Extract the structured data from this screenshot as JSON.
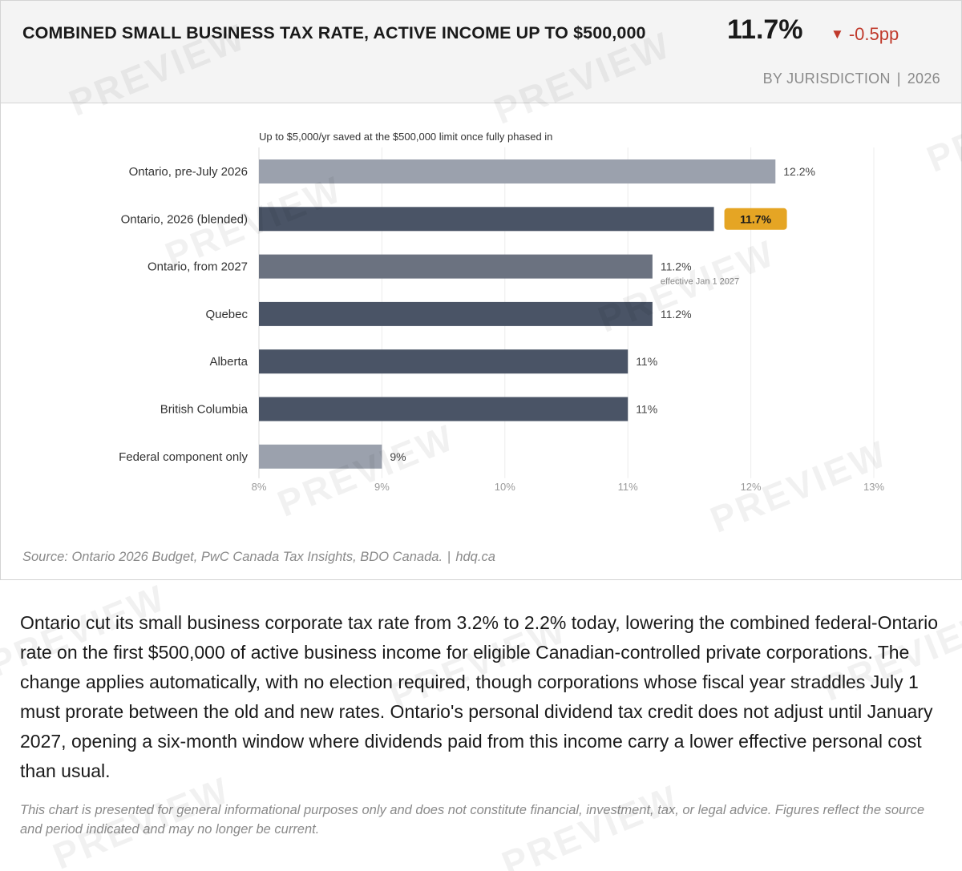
{
  "header": {
    "title": "COMBINED SMALL BUSINESS TAX RATE, ACTIVE INCOME UP TO $500,000",
    "headline_value": "11.7%",
    "change_arrow": "▼",
    "change_value": "-0.5pp",
    "subtitle_left": "BY JURISDICTION",
    "subtitle_sep": "|",
    "subtitle_right": "2026"
  },
  "chart_data": {
    "type": "bar",
    "orientation": "horizontal",
    "annotation": "Up to $5,000/yr saved at the $500,000 limit once fully phased in",
    "categories": [
      "Ontario, pre-July 2026",
      "Ontario, 2026 (blended)",
      "Ontario, from 2027",
      "Quebec",
      "Alberta",
      "British Columbia",
      "Federal component only"
    ],
    "values": [
      12.2,
      11.7,
      11.2,
      11.2,
      11.0,
      11.0,
      9.0
    ],
    "value_labels": [
      "12.2%",
      "11.7%",
      "11.2%",
      "11.2%",
      "11%",
      "11%",
      "9%"
    ],
    "notes": [
      "",
      "",
      "effective Jan 1 2027",
      "",
      "",
      "",
      ""
    ],
    "highlighted_index": 1,
    "bar_colors": [
      "#9ba1ad",
      "#4a5466",
      "#6b7280",
      "#4a5466",
      "#4a5466",
      "#4a5466",
      "#9ba1ad"
    ],
    "highlight_color": "#e5a524",
    "xlim": [
      8,
      13
    ],
    "xticks": [
      8,
      9,
      10,
      11,
      12,
      13
    ],
    "xtick_labels": [
      "8%",
      "9%",
      "10%",
      "11%",
      "12%",
      "13%"
    ],
    "grid": true,
    "xlabel": "",
    "ylabel": ""
  },
  "source": {
    "text": "Source: Ontario 2026 Budget, PwC Canada Tax Insights, BDO Canada.",
    "sep": "|",
    "site": "hdq.ca"
  },
  "body_text": "Ontario cut its small business corporate tax rate from 3.2% to 2.2% today, lowering the combined federal-Ontario rate on the first $500,000 of active business income for eligible Canadian-controlled private corporations. The change applies automatically, with no election required, though corporations whose fiscal year straddles July 1 must prorate between the old and new rates. Ontario's personal dividend tax credit does not adjust until January 2027, opening a six-month window where dividends paid from this income carry a lower effective personal cost than usual.",
  "disclaimer": "This chart is presented for general informational purposes only and does not constitute financial, investment, tax, or legal advice. Figures reflect the source and period indicated and may no longer be current.",
  "watermark": "PREVIEW"
}
